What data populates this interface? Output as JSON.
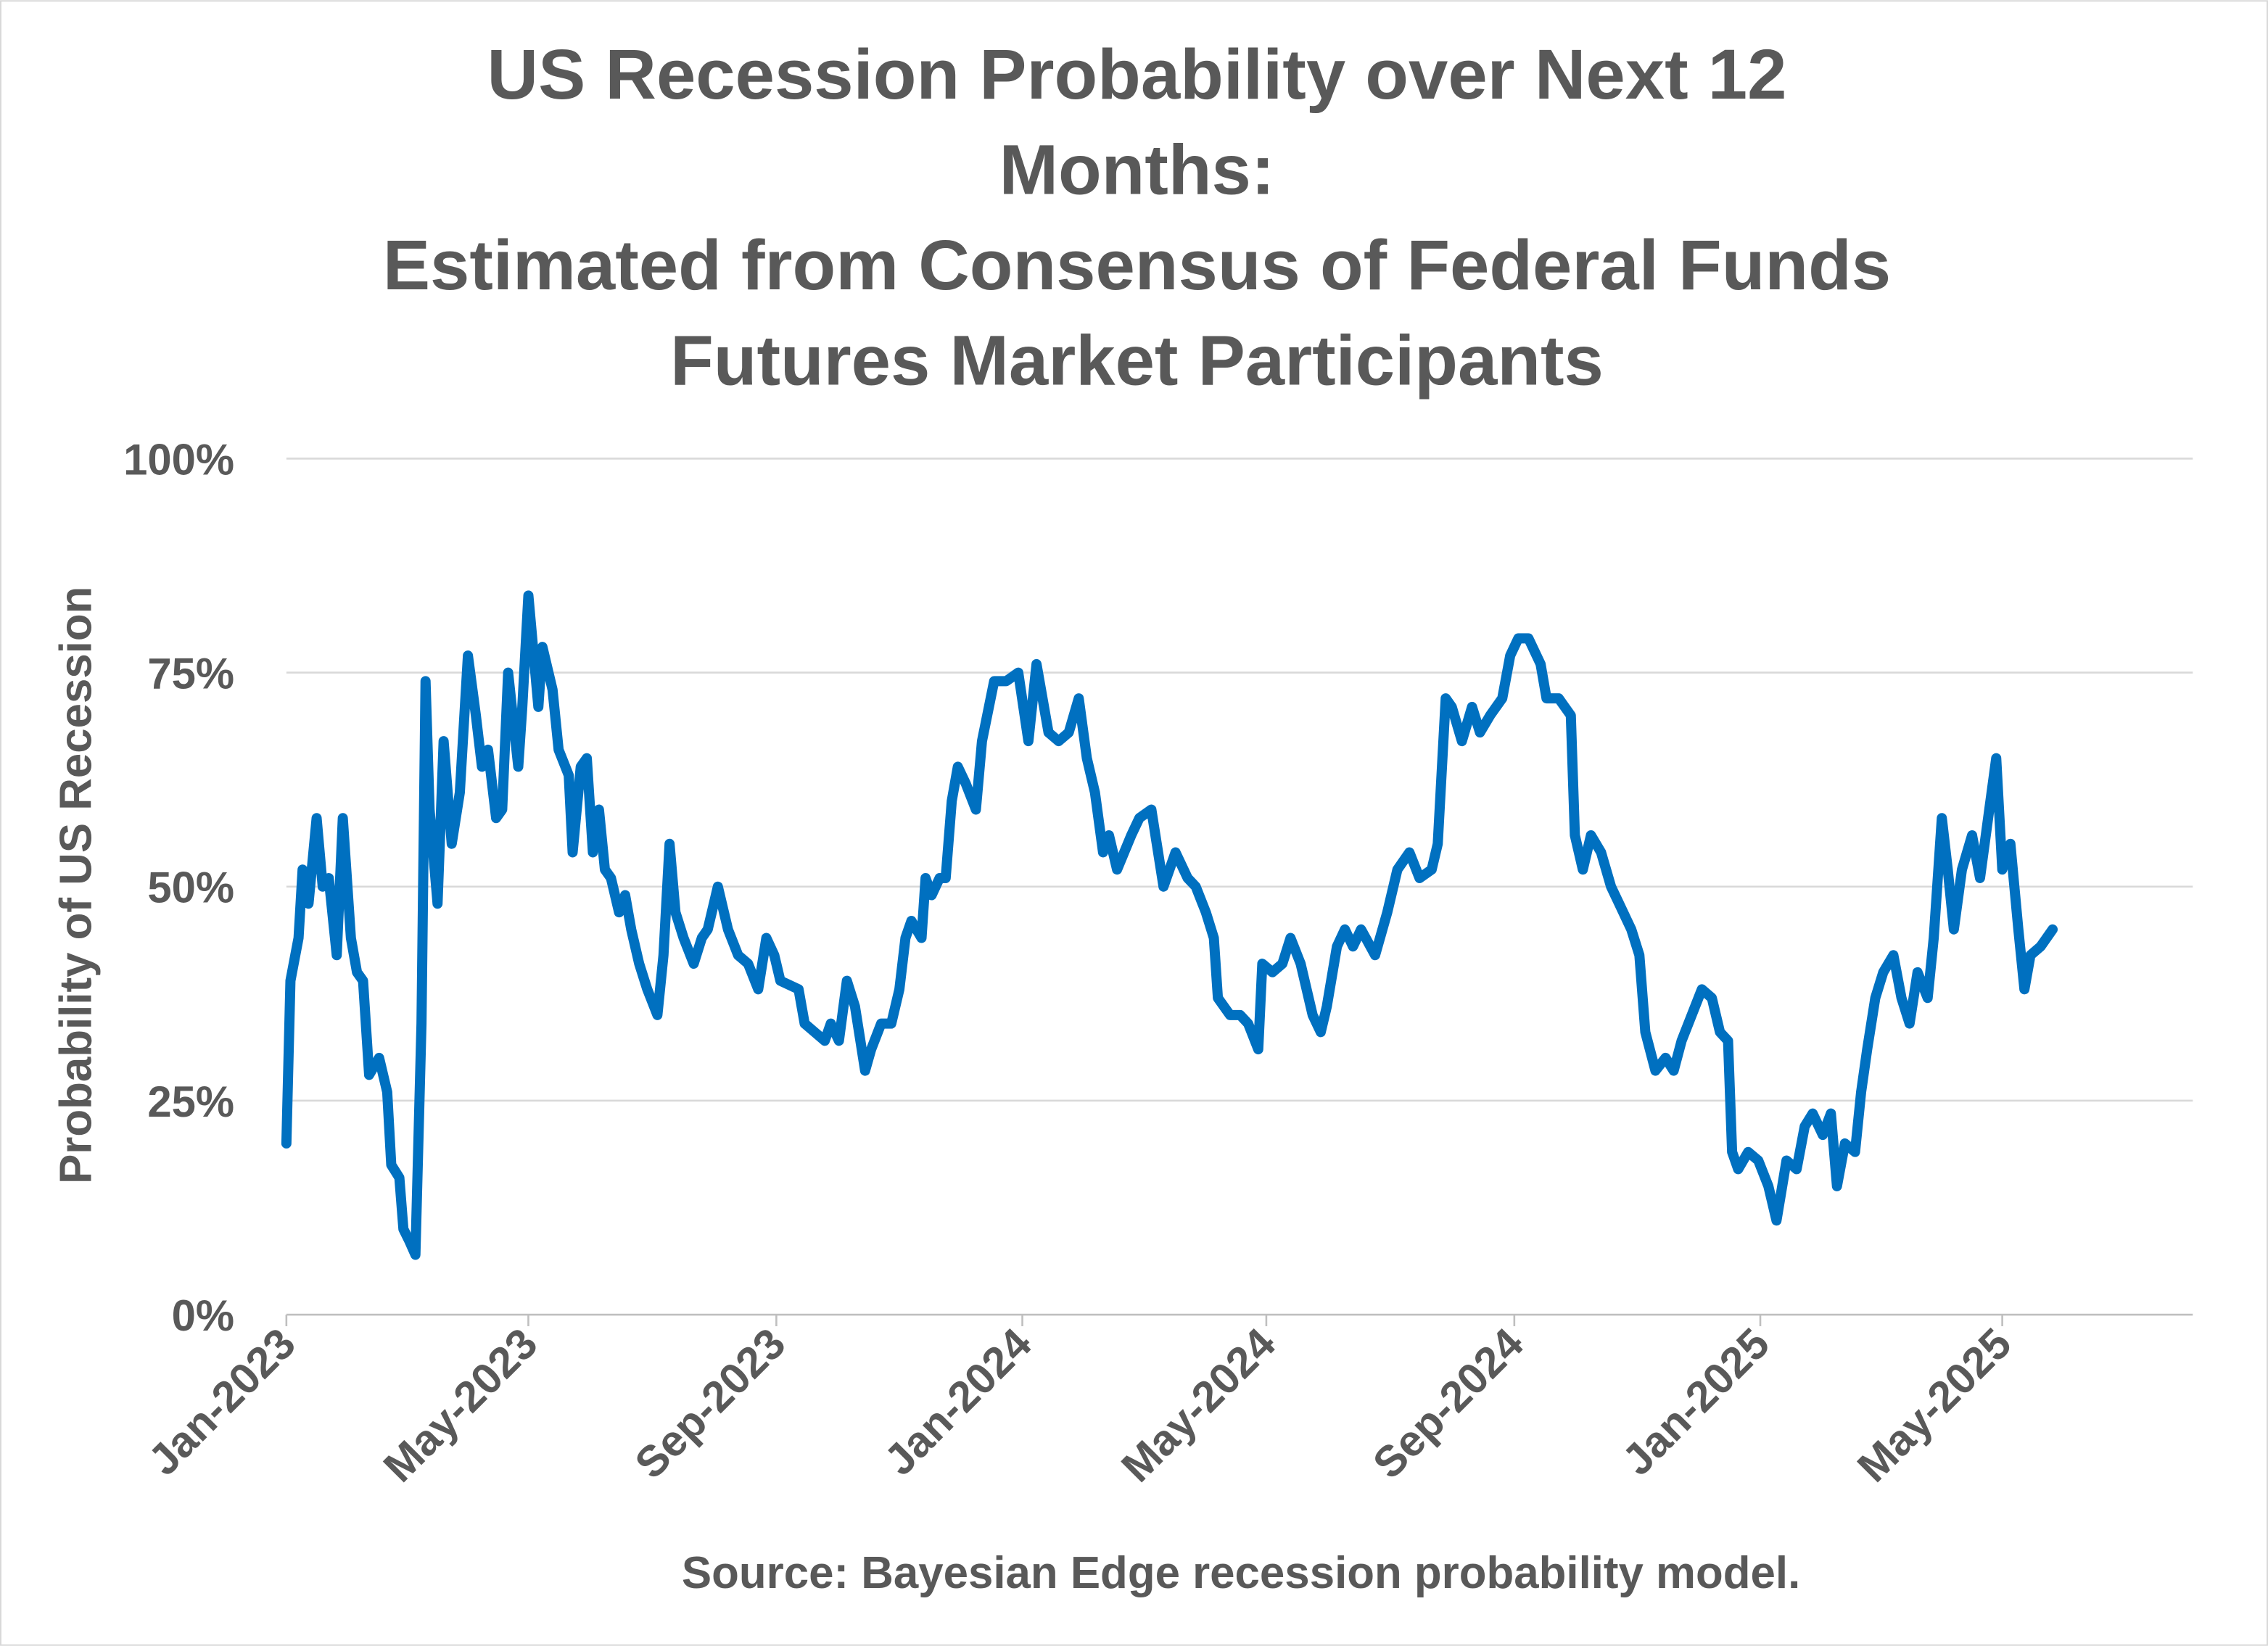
{
  "chart_data": {
    "type": "line",
    "title_lines": [
      "US Recession Probability over Next 12",
      "Months:",
      "Estimated from Consensus of Federal Funds",
      "Futures Market Participants"
    ],
    "xlabel": "",
    "ylabel": "Probability of US Recession",
    "source": "Source:  Bayesian Edge recession probability model.",
    "ylim": [
      0,
      100
    ],
    "xlim": [
      "2023-01-01",
      "2025-08-01"
    ],
    "y_ticks": [
      0,
      25,
      50,
      75,
      100
    ],
    "y_tick_labels": [
      "0%",
      "25%",
      "50%",
      "75%",
      "100%"
    ],
    "x_ticks": [
      "2023-01-01",
      "2023-05-01",
      "2023-09-01",
      "2024-01-01",
      "2024-05-01",
      "2024-09-01",
      "2025-01-01",
      "2025-05-01"
    ],
    "x_tick_labels": [
      "Jan-2023",
      "May-2023",
      "Sep-2023",
      "Jan-2024",
      "May-2024",
      "Sep-2024",
      "Jan-2025",
      "May-2025"
    ],
    "grid": true,
    "line_color": "#0070C0",
    "series": [
      {
        "x": [
          "2023-01-01",
          "2023-01-03",
          "2023-01-07",
          "2023-01-09",
          "2023-01-12",
          "2023-01-16",
          "2023-01-19",
          "2023-01-22",
          "2023-01-26",
          "2023-01-29",
          "2023-02-02",
          "2023-02-05",
          "2023-02-08",
          "2023-02-11",
          "2023-02-16",
          "2023-02-20",
          "2023-02-22",
          "2023-02-26",
          "2023-02-28",
          "2023-03-03",
          "2023-03-06",
          "2023-03-09",
          "2023-03-11",
          "2023-03-13",
          "2023-03-17",
          "2023-03-20",
          "2023-03-24",
          "2023-03-28",
          "2023-04-01",
          "2023-04-05",
          "2023-04-08",
          "2023-04-11",
          "2023-04-15",
          "2023-04-18",
          "2023-04-21",
          "2023-04-26",
          "2023-04-28",
          "2023-05-01",
          "2023-05-06",
          "2023-05-08",
          "2023-05-13",
          "2023-05-16",
          "2023-05-21",
          "2023-05-23",
          "2023-05-27",
          "2023-05-30",
          "2023-06-02",
          "2023-06-05",
          "2023-06-08",
          "2023-06-11",
          "2023-06-15",
          "2023-06-18",
          "2023-06-21",
          "2023-06-25",
          "2023-06-29",
          "2023-07-04",
          "2023-07-07",
          "2023-07-10",
          "2023-07-13",
          "2023-07-17",
          "2023-07-22",
          "2023-07-26",
          "2023-07-29",
          "2023-08-03",
          "2023-08-08",
          "2023-08-13",
          "2023-08-18",
          "2023-08-23",
          "2023-08-27",
          "2023-08-31",
          "2023-09-03",
          "2023-09-12",
          "2023-09-15",
          "2023-09-20",
          "2023-09-25",
          "2023-09-28",
          "2023-10-02",
          "2023-10-06",
          "2023-10-10",
          "2023-10-15",
          "2023-10-18",
          "2023-10-23",
          "2023-10-28",
          "2023-11-01",
          "2023-11-04",
          "2023-11-07",
          "2023-11-12",
          "2023-11-14",
          "2023-11-17",
          "2023-11-21",
          "2023-11-24",
          "2023-11-27",
          "2023-11-30",
          "2023-12-04",
          "2023-12-09",
          "2023-12-12",
          "2023-12-18",
          "2023-12-24",
          "2023-12-30",
          "2024-01-04",
          "2024-01-08",
          "2024-01-14",
          "2024-01-19",
          "2024-01-24",
          "2024-01-29",
          "2024-02-02",
          "2024-02-06",
          "2024-02-10",
          "2024-02-13",
          "2024-02-17",
          "2024-02-24",
          "2024-02-28",
          "2024-03-05",
          "2024-03-11",
          "2024-03-17",
          "2024-03-23",
          "2024-03-27",
          "2024-04-01",
          "2024-04-05",
          "2024-04-07",
          "2024-04-13",
          "2024-04-18",
          "2024-04-22",
          "2024-04-27",
          "2024-04-29",
          "2024-05-04",
          "2024-05-09",
          "2024-05-13",
          "2024-05-18",
          "2024-05-24",
          "2024-05-28",
          "2024-05-31",
          "2024-06-05",
          "2024-06-09",
          "2024-06-13",
          "2024-06-17",
          "2024-06-24",
          "2024-06-30",
          "2024-07-05",
          "2024-07-11",
          "2024-07-16",
          "2024-07-22",
          "2024-07-25",
          "2024-07-29",
          "2024-08-01",
          "2024-08-06",
          "2024-08-11",
          "2024-08-15",
          "2024-08-20",
          "2024-08-26",
          "2024-08-30",
          "2024-09-03",
          "2024-09-08",
          "2024-09-14",
          "2024-09-17",
          "2024-09-23",
          "2024-09-29",
          "2024-10-01",
          "2024-10-05",
          "2024-10-09",
          "2024-10-14",
          "2024-10-19",
          "2024-10-23",
          "2024-10-29",
          "2024-11-02",
          "2024-11-05",
          "2024-11-10",
          "2024-11-15",
          "2024-11-19",
          "2024-11-23",
          "2024-11-28",
          "2024-12-03",
          "2024-12-08",
          "2024-12-12",
          "2024-12-16",
          "2024-12-18",
          "2024-12-21",
          "2024-12-26",
          "2024-12-31",
          "2025-01-05",
          "2025-01-09",
          "2025-01-14",
          "2025-01-19",
          "2025-01-23",
          "2025-01-27",
          "2025-02-01",
          "2025-02-05",
          "2025-02-08",
          "2025-02-12",
          "2025-02-17",
          "2025-02-20",
          "2025-02-23",
          "2025-02-27",
          "2025-03-03",
          "2025-03-08",
          "2025-03-12",
          "2025-03-16",
          "2025-03-20",
          "2025-03-25",
          "2025-03-28",
          "2025-04-01",
          "2025-04-04",
          "2025-04-07",
          "2025-04-11",
          "2025-04-16",
          "2025-04-20",
          "2025-04-24",
          "2025-04-28",
          "2025-05-01",
          "2025-05-05",
          "2025-05-09",
          "2025-05-12",
          "2025-05-15",
          "2025-05-20",
          "2025-05-26"
        ],
        "values": [
          20,
          39,
          44,
          52,
          48,
          58,
          50,
          51,
          42,
          58,
          44,
          40,
          39,
          28,
          30,
          26,
          17.5,
          16,
          10,
          8.6,
          7,
          34,
          74,
          59,
          48,
          67,
          55,
          61,
          77,
          70,
          64,
          66,
          58,
          59,
          75,
          64,
          71,
          84,
          71,
          78,
          73,
          66,
          63,
          54,
          64,
          65,
          54,
          59,
          52,
          51,
          47,
          49,
          45,
          41,
          38,
          35,
          42,
          55,
          47,
          44,
          41,
          44,
          45,
          50,
          45,
          42,
          41,
          38,
          44,
          42,
          39,
          38,
          34,
          33,
          32,
          34,
          32,
          39,
          36,
          28.5,
          31,
          34,
          34,
          38,
          44,
          46,
          44,
          51,
          49,
          51,
          51,
          60,
          64,
          62,
          59,
          67,
          74,
          74,
          75,
          67,
          76,
          68,
          67,
          68,
          72,
          65,
          61,
          54,
          56,
          52,
          56,
          58,
          59,
          50,
          54,
          51,
          50,
          47,
          44,
          37,
          35,
          35,
          34,
          31,
          41,
          40,
          41,
          44,
          41,
          35,
          33,
          36,
          43,
          45,
          43,
          45,
          42,
          47,
          52,
          54,
          51,
          52,
          55,
          72,
          71,
          67,
          71,
          68,
          70,
          72,
          77,
          79,
          79,
          76,
          72,
          72,
          70,
          56,
          52,
          56,
          54,
          50,
          48,
          45,
          42,
          33,
          28.5,
          30,
          28.5,
          32,
          35,
          38,
          37,
          33,
          32,
          19,
          17,
          19,
          18,
          15,
          11,
          18,
          17,
          22,
          23.5,
          21,
          23.5,
          15,
          20,
          19,
          26,
          31,
          37,
          40,
          42,
          37,
          34,
          40,
          37,
          44,
          58,
          52,
          45,
          52,
          56,
          51,
          58,
          65,
          52,
          55,
          45,
          38,
          42,
          43,
          45
        ]
      }
    ]
  }
}
